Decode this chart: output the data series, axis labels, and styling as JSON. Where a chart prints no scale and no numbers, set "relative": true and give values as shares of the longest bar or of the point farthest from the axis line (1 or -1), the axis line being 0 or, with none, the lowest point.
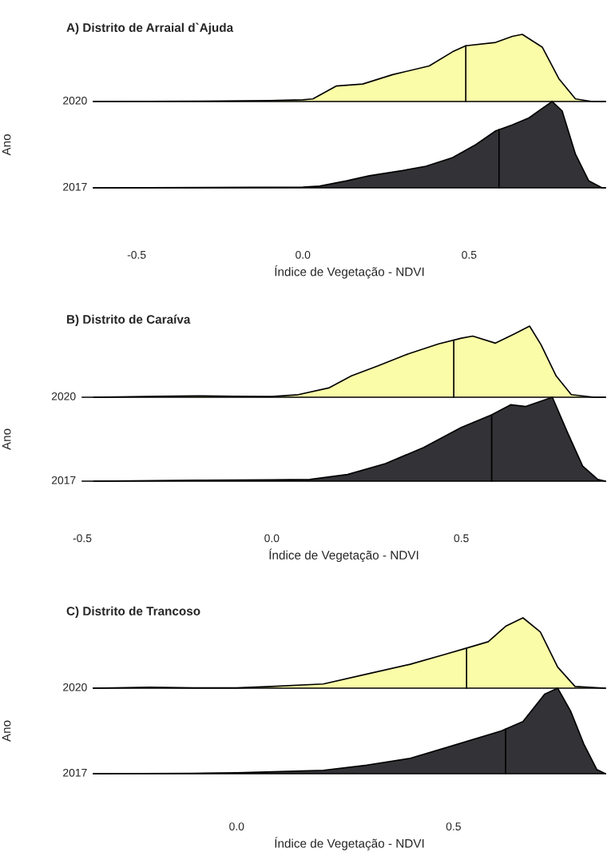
{
  "chart_data": [
    {
      "type": "area",
      "relative": true,
      "title": "A) Distrito de Arraial d`Ajuda",
      "xlim": [
        -0.63,
        0.91
      ],
      "tick_labels": false,
      "series": [
        {
          "name": "2020",
          "color": "#fafca8",
          "x": [
            -0.63,
            -0.3,
            -0.1,
            0.0,
            0.03,
            0.1,
            0.18,
            0.27,
            0.38,
            0.45,
            0.49,
            0.58,
            0.63,
            0.66,
            0.72,
            0.77,
            0.82,
            0.87,
            0.91
          ],
          "values": [
            0,
            0.005,
            0.013,
            0.026,
            0.039,
            0.23,
            0.26,
            0.4,
            0.53,
            0.74,
            0.83,
            0.88,
            0.97,
            1.0,
            0.81,
            0.34,
            0.039,
            0,
            0
          ]
        }
      ],
      "ref_lines": [
        {
          "axis": "x",
          "value": 0.49,
          "color": "#000000"
        }
      ]
    },
    {
      "type": "area",
      "relative": true,
      "xlabel": "Índice de Vegetação - NDVI",
      "ylabel": "Ano",
      "xlim": [
        -0.63,
        0.91
      ],
      "xticks": [
        {
          "value": -0.5,
          "label": "-0.5"
        },
        {
          "value": 0,
          "label": "0.0"
        },
        {
          "value": 0.5,
          "label": "0.5"
        }
      ],
      "series": [
        {
          "name": "2017",
          "color": "#333337",
          "x": [
            -0.63,
            -0.3,
            0.0,
            0.05,
            0.13,
            0.2,
            0.3,
            0.37,
            0.45,
            0.52,
            0.58,
            0.63,
            0.68,
            0.72,
            0.75,
            0.78,
            0.82,
            0.86,
            0.9,
            0.91
          ],
          "values": [
            0,
            0.004,
            0.008,
            0.02,
            0.08,
            0.14,
            0.2,
            0.25,
            0.35,
            0.5,
            0.66,
            0.73,
            0.81,
            0.92,
            1.0,
            0.89,
            0.39,
            0.08,
            0,
            0
          ]
        }
      ],
      "ref_lines": [
        {
          "axis": "x",
          "value": 0.59,
          "color": "#000000"
        }
      ]
    },
    {
      "type": "area",
      "relative": true,
      "title": "B) Distrito de Caraíva",
      "xlim": [
        -0.5,
        0.88
      ],
      "tick_labels": false,
      "series": [
        {
          "name": "2020",
          "color": "#fafca8",
          "x": [
            -0.47,
            -0.3,
            -0.2,
            -0.1,
            0.0,
            0.07,
            0.15,
            0.21,
            0.28,
            0.36,
            0.44,
            0.5,
            0.53,
            0.59,
            0.64,
            0.68,
            0.71,
            0.75,
            0.79,
            0.85,
            0.88
          ],
          "values": [
            0,
            0.012,
            0.019,
            0.012,
            0.01,
            0.036,
            0.13,
            0.3,
            0.44,
            0.61,
            0.75,
            0.83,
            0.86,
            0.76,
            0.89,
            1.0,
            0.74,
            0.3,
            0.036,
            0,
            0
          ]
        }
      ],
      "ref_lines": [
        {
          "axis": "x",
          "value": 0.48,
          "color": "#000000"
        }
      ]
    },
    {
      "type": "area",
      "relative": true,
      "xlabel": "Índice de Vegetação - NDVI",
      "ylabel": "Ano",
      "xlim": [
        -0.5,
        0.88
      ],
      "xticks": [
        {
          "value": -0.5,
          "label": "-0.5"
        },
        {
          "value": 0,
          "label": "0.0"
        },
        {
          "value": 0.5,
          "label": "0.5"
        }
      ],
      "series": [
        {
          "name": "2017",
          "color": "#333337",
          "x": [
            -0.47,
            -0.2,
            0.0,
            0.1,
            0.2,
            0.3,
            0.4,
            0.5,
            0.58,
            0.63,
            0.67,
            0.74,
            0.78,
            0.82,
            0.86,
            0.88
          ],
          "values": [
            0,
            0.01,
            0.016,
            0.02,
            0.08,
            0.21,
            0.4,
            0.64,
            0.79,
            0.91,
            0.89,
            1.0,
            0.58,
            0.18,
            0.02,
            0
          ]
        }
      ],
      "ref_lines": [
        {
          "axis": "x",
          "value": 0.58,
          "color": "#000000"
        }
      ]
    },
    {
      "type": "area",
      "relative": true,
      "title": "C) Distrito de Trancoso",
      "xlim": [
        -0.33,
        0.85
      ],
      "tick_labels": false,
      "series": [
        {
          "name": "2020",
          "color": "#fafca8",
          "x": [
            -0.33,
            -0.2,
            -0.1,
            0.0,
            0.08,
            0.2,
            0.3,
            0.4,
            0.48,
            0.53,
            0.58,
            0.62,
            0.66,
            0.7,
            0.74,
            0.78,
            0.85
          ],
          "values": [
            0,
            0.012,
            0.005,
            0.005,
            0.024,
            0.06,
            0.2,
            0.34,
            0.48,
            0.57,
            0.66,
            0.88,
            1.0,
            0.8,
            0.3,
            0.024,
            0
          ]
        }
      ],
      "ref_lines": [
        {
          "axis": "x",
          "value": 0.53,
          "color": "#000000"
        }
      ]
    },
    {
      "type": "area",
      "relative": true,
      "xlabel": "Índice de Vegetação - NDVI",
      "ylabel": "Ano",
      "xlim": [
        -0.33,
        0.85
      ],
      "xticks": [
        {
          "value": 0,
          "label": "0.0"
        },
        {
          "value": 0.5,
          "label": "0.5"
        }
      ],
      "series": [
        {
          "name": "2017",
          "color": "#333337",
          "x": [
            -0.33,
            -0.1,
            0.0,
            0.2,
            0.3,
            0.4,
            0.48,
            0.61,
            0.66,
            0.71,
            0.74,
            0.77,
            0.8,
            0.83,
            0.85
          ],
          "values": [
            0,
            0.005,
            0.01,
            0.04,
            0.1,
            0.18,
            0.3,
            0.5,
            0.61,
            0.93,
            1.0,
            0.73,
            0.35,
            0.05,
            0
          ]
        }
      ],
      "ref_lines": [
        {
          "axis": "x",
          "value": 0.62,
          "color": "#000000"
        }
      ]
    }
  ]
}
